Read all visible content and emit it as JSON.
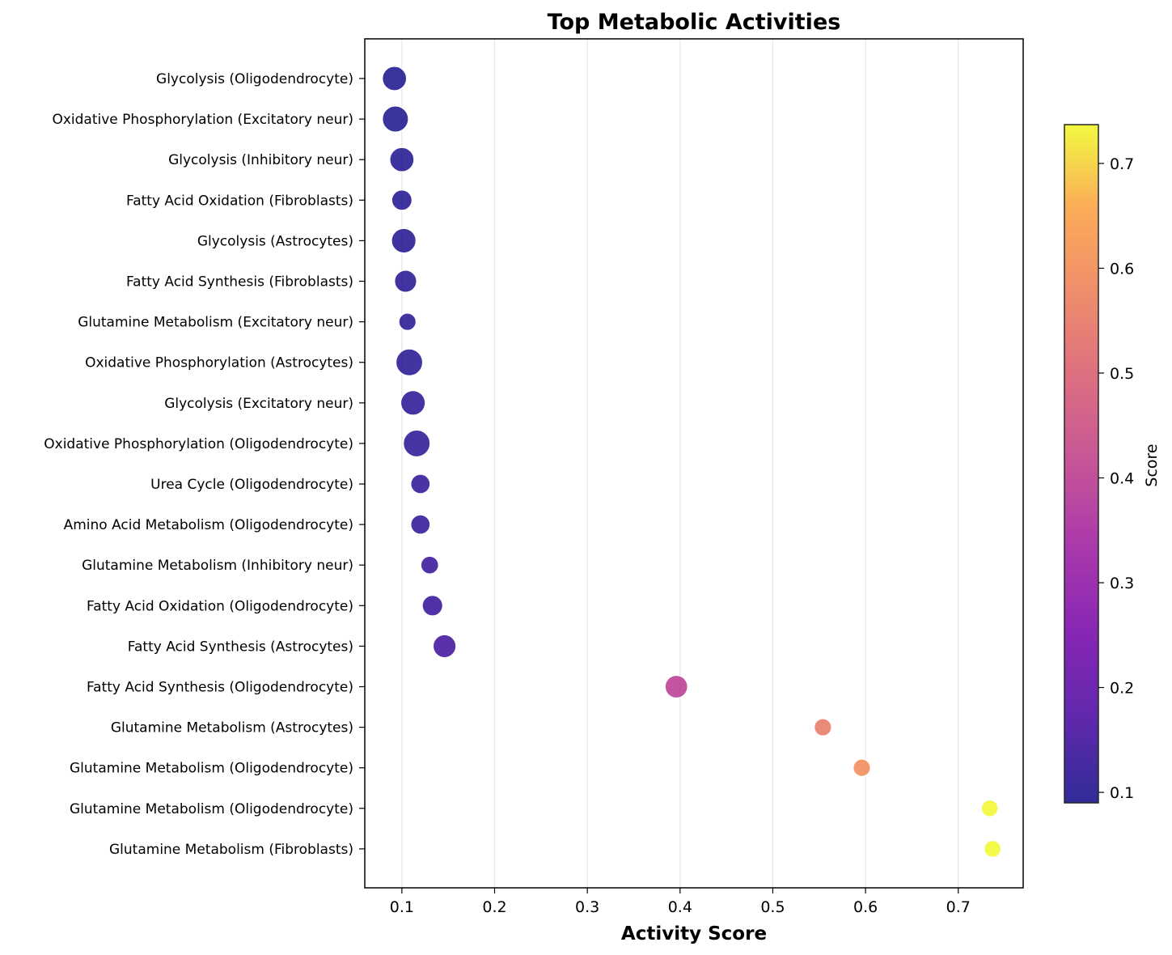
{
  "chart_data": {
    "type": "scatter",
    "title": "Top Metabolic Activities",
    "xlabel": "Activity Score",
    "ylabel": "",
    "xlim": [
      0.06,
      0.77
    ],
    "xticks": [
      0.1,
      0.2,
      0.3,
      0.4,
      0.5,
      0.6,
      0.7
    ],
    "xtick_labels": [
      "0.1",
      "0.2",
      "0.3",
      "0.4",
      "0.5",
      "0.6",
      "0.7"
    ],
    "grid": "vertical",
    "colormap": "plasma",
    "colorbar": {
      "label": "Score",
      "range": [
        0.09,
        0.737
      ],
      "ticks": [
        0.1,
        0.2,
        0.3,
        0.4,
        0.5,
        0.6,
        0.7
      ],
      "tick_labels": [
        "0.1",
        "0.2",
        "0.3",
        "0.4",
        "0.5",
        "0.6",
        "0.7"
      ]
    },
    "points": [
      {
        "label": "Glycolysis (Oligodendrocyte)",
        "x": 0.092,
        "relative_size": 0.78
      },
      {
        "label": "Oxidative Phosphorylation (Excitatory neur)",
        "x": 0.093,
        "relative_size": 0.9
      },
      {
        "label": "Glycolysis (Inhibitory neur)",
        "x": 0.1,
        "relative_size": 0.78
      },
      {
        "label": "Fatty Acid Oxidation (Fibroblasts)",
        "x": 0.1,
        "relative_size": 0.55
      },
      {
        "label": "Glycolysis (Astrocytes)",
        "x": 0.102,
        "relative_size": 0.8
      },
      {
        "label": "Fatty Acid Synthesis (Fibroblasts)",
        "x": 0.104,
        "relative_size": 0.65
      },
      {
        "label": "Glutamine Metabolism (Excitatory neur)",
        "x": 0.106,
        "relative_size": 0.4
      },
      {
        "label": "Oxidative Phosphorylation (Astrocytes)",
        "x": 0.108,
        "relative_size": 0.95
      },
      {
        "label": "Glycolysis (Excitatory neur)",
        "x": 0.112,
        "relative_size": 0.8
      },
      {
        "label": "Oxidative Phosphorylation (Oligodendrocyte)",
        "x": 0.116,
        "relative_size": 0.95
      },
      {
        "label": "Urea Cycle (Oligodendrocyte)",
        "x": 0.12,
        "relative_size": 0.5
      },
      {
        "label": "Amino Acid Metabolism (Oligodendrocyte)",
        "x": 0.12,
        "relative_size": 0.5
      },
      {
        "label": "Glutamine Metabolism (Inhibitory neur)",
        "x": 0.13,
        "relative_size": 0.42
      },
      {
        "label": "Fatty Acid Oxidation (Oligodendrocyte)",
        "x": 0.133,
        "relative_size": 0.56
      },
      {
        "label": "Fatty Acid Synthesis (Astrocytes)",
        "x": 0.146,
        "relative_size": 0.7
      },
      {
        "label": "Fatty Acid Synthesis (Oligodendrocyte)",
        "x": 0.396,
        "relative_size": 0.68
      },
      {
        "label": "Glutamine Metabolism (Astrocytes)",
        "x": 0.554,
        "relative_size": 0.4
      },
      {
        "label": "Glutamine Metabolism (Oligodendrocyte)",
        "x": 0.596,
        "relative_size": 0.4
      },
      {
        "label": "Glutamine Metabolism (Oligodendrocyte)",
        "x": 0.734,
        "relative_size": 0.38
      },
      {
        "label": "Glutamine Metabolism (Fibroblasts)",
        "x": 0.737,
        "relative_size": 0.38
      }
    ]
  }
}
